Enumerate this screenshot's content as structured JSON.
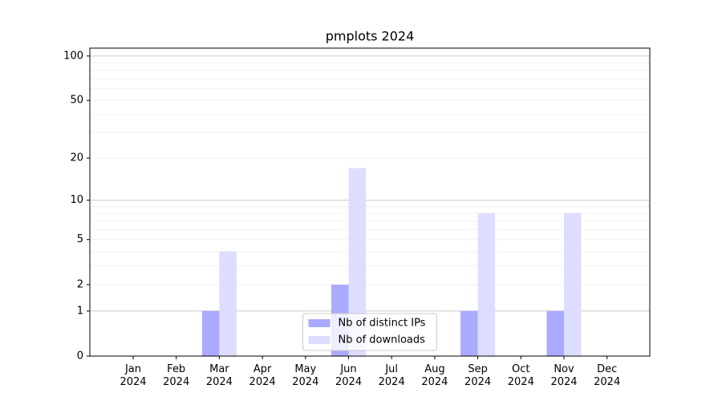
{
  "chart_data": {
    "type": "bar",
    "title": "pmplots 2024",
    "categories": [
      "Jan 2024",
      "Feb 2024",
      "Mar 2024",
      "Apr 2024",
      "May 2024",
      "Jun 2024",
      "Jul 2024",
      "Aug 2024",
      "Sep 2024",
      "Oct 2024",
      "Nov 2024",
      "Dec 2024"
    ],
    "series": [
      {
        "name": "Nb of distinct IPs",
        "color": "#aaaaff",
        "values": [
          0,
          0,
          1,
          0,
          0,
          2,
          0,
          0,
          1,
          0,
          1,
          0
        ]
      },
      {
        "name": "Nb of downloads",
        "color": "#ddddff",
        "values": [
          0,
          0,
          4,
          0,
          0,
          17,
          0,
          0,
          8,
          0,
          8,
          0
        ]
      }
    ],
    "yscale": "log1p",
    "ylim": [
      0,
      113
    ],
    "yticks": [
      0,
      1,
      2,
      5,
      10,
      20,
      50,
      100
    ],
    "major_grid": [
      1,
      10,
      100
    ],
    "minor_grid": [
      3,
      4,
      6,
      7,
      8,
      9,
      30,
      40,
      60,
      70,
      80,
      90
    ],
    "grid": true,
    "legend": "lower center"
  }
}
